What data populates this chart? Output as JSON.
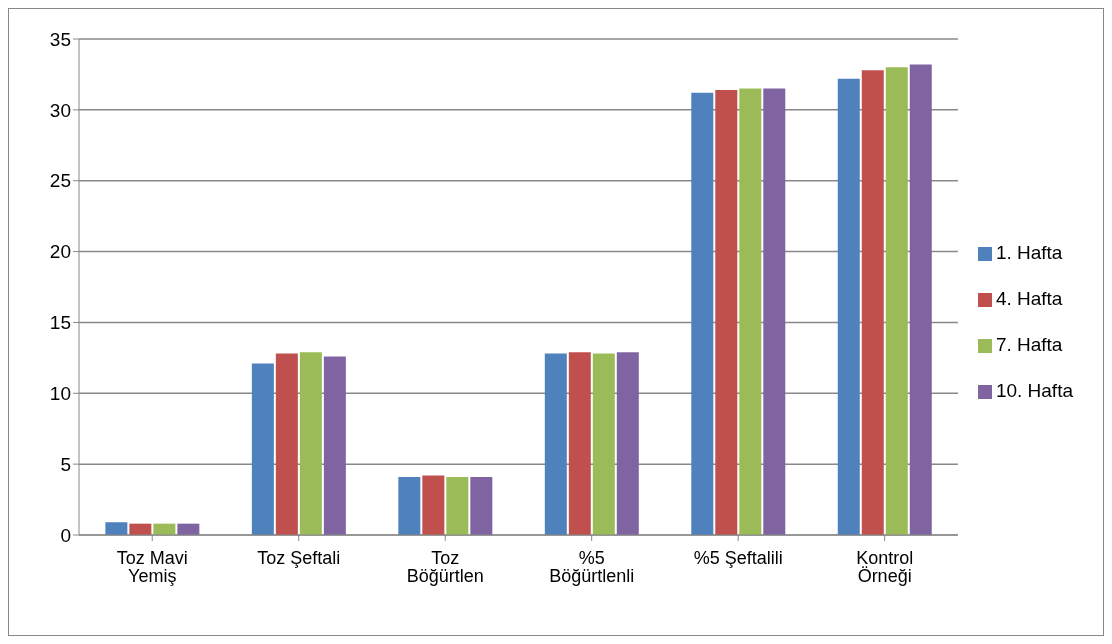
{
  "chart_data": {
    "type": "bar",
    "categories": [
      "Toz Mavi Yemiş",
      "Toz Şeftali",
      "Toz Böğürtlen",
      "%5 Böğürtlenli",
      "%5 Şeftalili",
      "Kontrol Örneği"
    ],
    "series": [
      {
        "name": "1. Hafta",
        "color": "#4f81bd",
        "values": [
          0.9,
          12.1,
          4.1,
          12.8,
          31.2,
          32.2
        ]
      },
      {
        "name": "4. Hafta",
        "color": "#c0504d",
        "values": [
          0.8,
          12.8,
          4.2,
          12.9,
          31.4,
          32.8
        ]
      },
      {
        "name": "7. Hafta",
        "color": "#9bbb59",
        "values": [
          0.8,
          12.9,
          4.1,
          12.8,
          31.5,
          33.0
        ]
      },
      {
        "name": "10. Hafta",
        "color": "#8064a2",
        "values": [
          0.8,
          12.6,
          4.1,
          12.9,
          31.5,
          33.2
        ]
      }
    ],
    "ylim": [
      0,
      35
    ],
    "yticks": [
      0,
      5,
      10,
      15,
      20,
      25,
      30,
      35
    ],
    "grid": "y",
    "legend": "right"
  }
}
